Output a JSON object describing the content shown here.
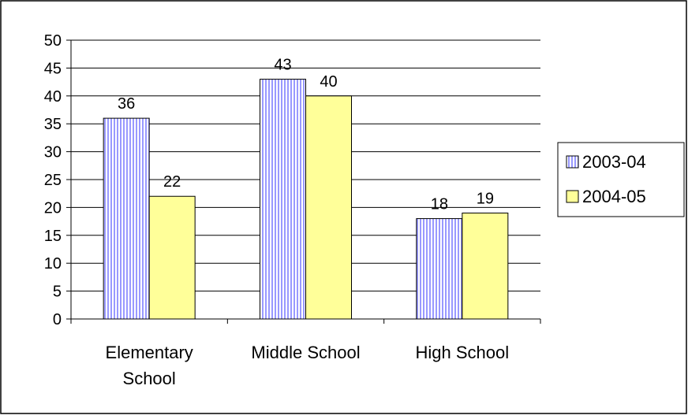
{
  "chart_data": {
    "type": "bar",
    "categories": [
      [
        "Elementary",
        "School"
      ],
      [
        "Middle School"
      ],
      [
        "High School"
      ]
    ],
    "series": [
      {
        "name": "2003-04",
        "values": [
          36,
          43,
          18
        ],
        "color": "#9999ff",
        "pattern": "vertical-stripes"
      },
      {
        "name": "2004-05",
        "values": [
          22,
          40,
          19
        ],
        "color": "#ffff99",
        "pattern": "solid"
      }
    ],
    "ylim": [
      0,
      50
    ],
    "yticks": [
      "0",
      "5",
      "10",
      "15",
      "20",
      "25",
      "30",
      "35",
      "40",
      "45",
      "50"
    ],
    "grid": true,
    "legend": "right",
    "data_labels": true
  }
}
